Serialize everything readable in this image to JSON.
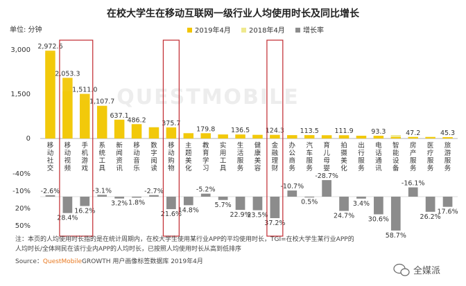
{
  "chart_data": {
    "type": "bar",
    "title": "在校大学生在移动互联网一级行业人均使用时长及同比增长",
    "unit_label": "单位: 分钟",
    "legend": [
      {
        "name": "2019年4月",
        "color": "#f2c500"
      },
      {
        "name": "2018年4月",
        "color": "#efe98e"
      },
      {
        "name": "增长率",
        "color": "#8c8c8c"
      }
    ],
    "categories": [
      "移动社交",
      "移动视频",
      "手机游戏",
      "系统工具",
      "新闻资讯",
      "移动音乐",
      "数字阅读",
      "移动购物",
      "主题美化",
      "教育学习",
      "实用工具",
      "生活服务",
      "健康美容",
      "金融理财",
      "办公商务",
      "汽车服务",
      "育儿母婴",
      "拍摄美化",
      "出行服务",
      "电话通讯",
      "智能设备",
      "房产服务",
      "医疗服务",
      "旅游服务"
    ],
    "series": [
      {
        "name": "2019年4月",
        "values": [
          2972.6,
          2053.3,
          1511.0,
          1107.7,
          637.1,
          486.2,
          375.7,
          375.7,
          179.8,
          179.8,
          136.5,
          136.5,
          124.3,
          124.3,
          113.5,
          113.5,
          111.9,
          111.9,
          93.3,
          93.3,
          47.2,
          47.2,
          45.3,
          45.3
        ]
      },
      {
        "name": "2018年4月",
        "values": [
          2900,
          1600,
          1300,
          1070,
          620,
          478,
          386,
          310,
          178,
          170,
          130,
          112,
          120,
          100,
          110,
          114,
          88,
          88,
          95,
          72,
          115,
          60,
          61,
          38
        ]
      },
      {
        "name": "增长率",
        "values": [
          -2.6,
          28.4,
          16.2,
          -3.1,
          3.2,
          1.8,
          -2.7,
          21.6,
          14.8,
          -5.2,
          5.7,
          22.9,
          23.5,
          37.2,
          -10.7,
          0.5,
          -28.7,
          24.7,
          3.4,
          30.6,
          58.7,
          -16.1,
          26.2,
          17.6
        ]
      }
    ],
    "bar_labels": [
      {
        "index": 0,
        "text": "2,972.6"
      },
      {
        "index": 1,
        "text": "2,053.3"
      },
      {
        "index": 2,
        "text": "1,511.0"
      },
      {
        "index": 3,
        "text": "1,107.7"
      },
      {
        "index": 4,
        "text": "637.1"
      },
      {
        "index": 5,
        "text": "486.2"
      },
      {
        "index": 7,
        "text": "375.7"
      },
      {
        "index": 9,
        "text": "179.8"
      },
      {
        "index": 11,
        "text": "136.5"
      },
      {
        "index": 13,
        "text": "124.3"
      },
      {
        "index": 15,
        "text": "113.5"
      },
      {
        "index": 17,
        "text": "111.9"
      },
      {
        "index": 19,
        "text": "93.3"
      },
      {
        "index": 21,
        "text": "47.2"
      },
      {
        "index": 23,
        "text": "45.3"
      }
    ],
    "growth_labels": [
      "-2.6%",
      "28.4%",
      "16.2%",
      "-3.1%",
      "3.2%",
      "1.8%",
      "-2.7%",
      "21.6%",
      "14.8%",
      "-5.2%",
      "5.7%",
      "22.9%",
      "23.5%",
      "37.2%",
      "-10.7%",
      "0.5%",
      "-28.7%",
      "24.7%",
      "3.4%",
      "30.6%",
      "58.7%",
      "-16.1%",
      "26.2%",
      "17.6%"
    ],
    "y_ticks": [
      "3,000",
      "1,500",
      "0"
    ],
    "growth_ticks": [
      "-40%",
      "-10%",
      "20%",
      "50%"
    ],
    "ylim": [
      0,
      3000
    ],
    "growth_lim": [
      -40,
      60
    ],
    "highlight_boxes": [
      [
        1,
        2
      ],
      [
        7,
        7
      ],
      [
        13,
        13
      ]
    ],
    "highlight_color": "#c0272d"
  },
  "footnote": {
    "line1": "注：本页的人均使用时长指的是在统计周期内，在校大学生使用某行业APP的平均使用时长，TGI=在校大学生某行业APP的",
    "line2": "人均时长/全体网民在该行业内APP的人均时长，已按照人均使用时长从高到低排序",
    "source_label": "Source：",
    "source_brand": "QuestMobile",
    "source_rest": "GROWTH 用户画像标签数据库  2019年4月"
  },
  "watermark": "QUESTMOBILE",
  "brand": {
    "name": "全媒派",
    "icon": "wechat-icon"
  }
}
